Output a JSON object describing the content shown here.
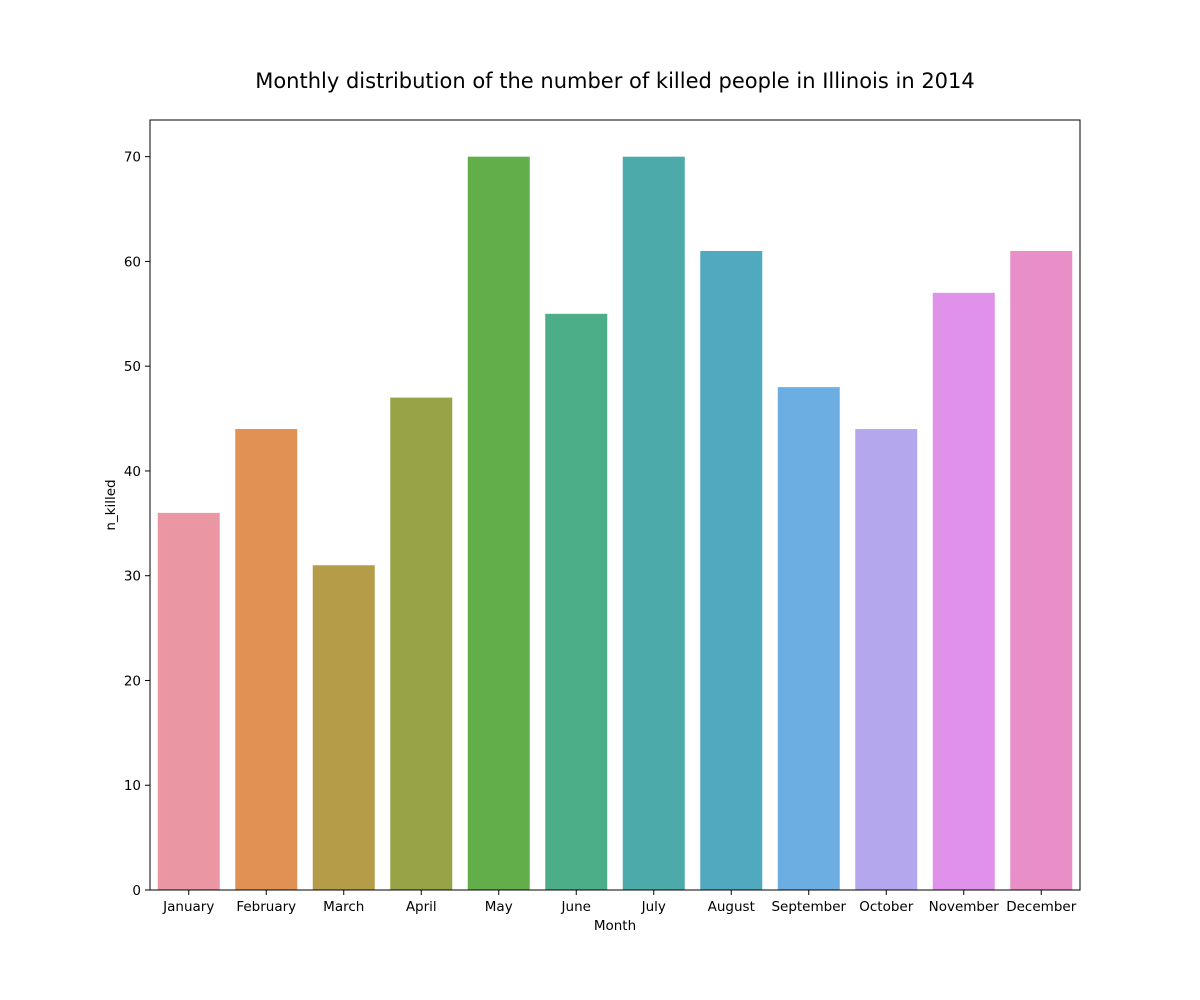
{
  "chart_data": {
    "type": "bar",
    "title": "Monthly distribution of the number of killed people in Illinois in 2014",
    "xlabel": "Month",
    "ylabel": "n_killed",
    "categories": [
      "January",
      "February",
      "March",
      "April",
      "May",
      "June",
      "July",
      "August",
      "September",
      "October",
      "November",
      "December"
    ],
    "values": [
      36,
      44,
      31,
      47,
      70,
      55,
      70,
      61,
      48,
      44,
      57,
      61
    ],
    "ylim": [
      0,
      73.5
    ],
    "yticks": [
      0,
      10,
      20,
      30,
      40,
      50,
      60,
      70
    ],
    "grid": false,
    "legend": false,
    "colors": [
      "#ea96a3",
      "#e19153",
      "#b59c48",
      "#97a346",
      "#62ae4b",
      "#4cae88",
      "#4cabaa",
      "#50a9bf",
      "#6daee2",
      "#b4a7ed",
      "#e091e9",
      "#e88fc7"
    ]
  }
}
